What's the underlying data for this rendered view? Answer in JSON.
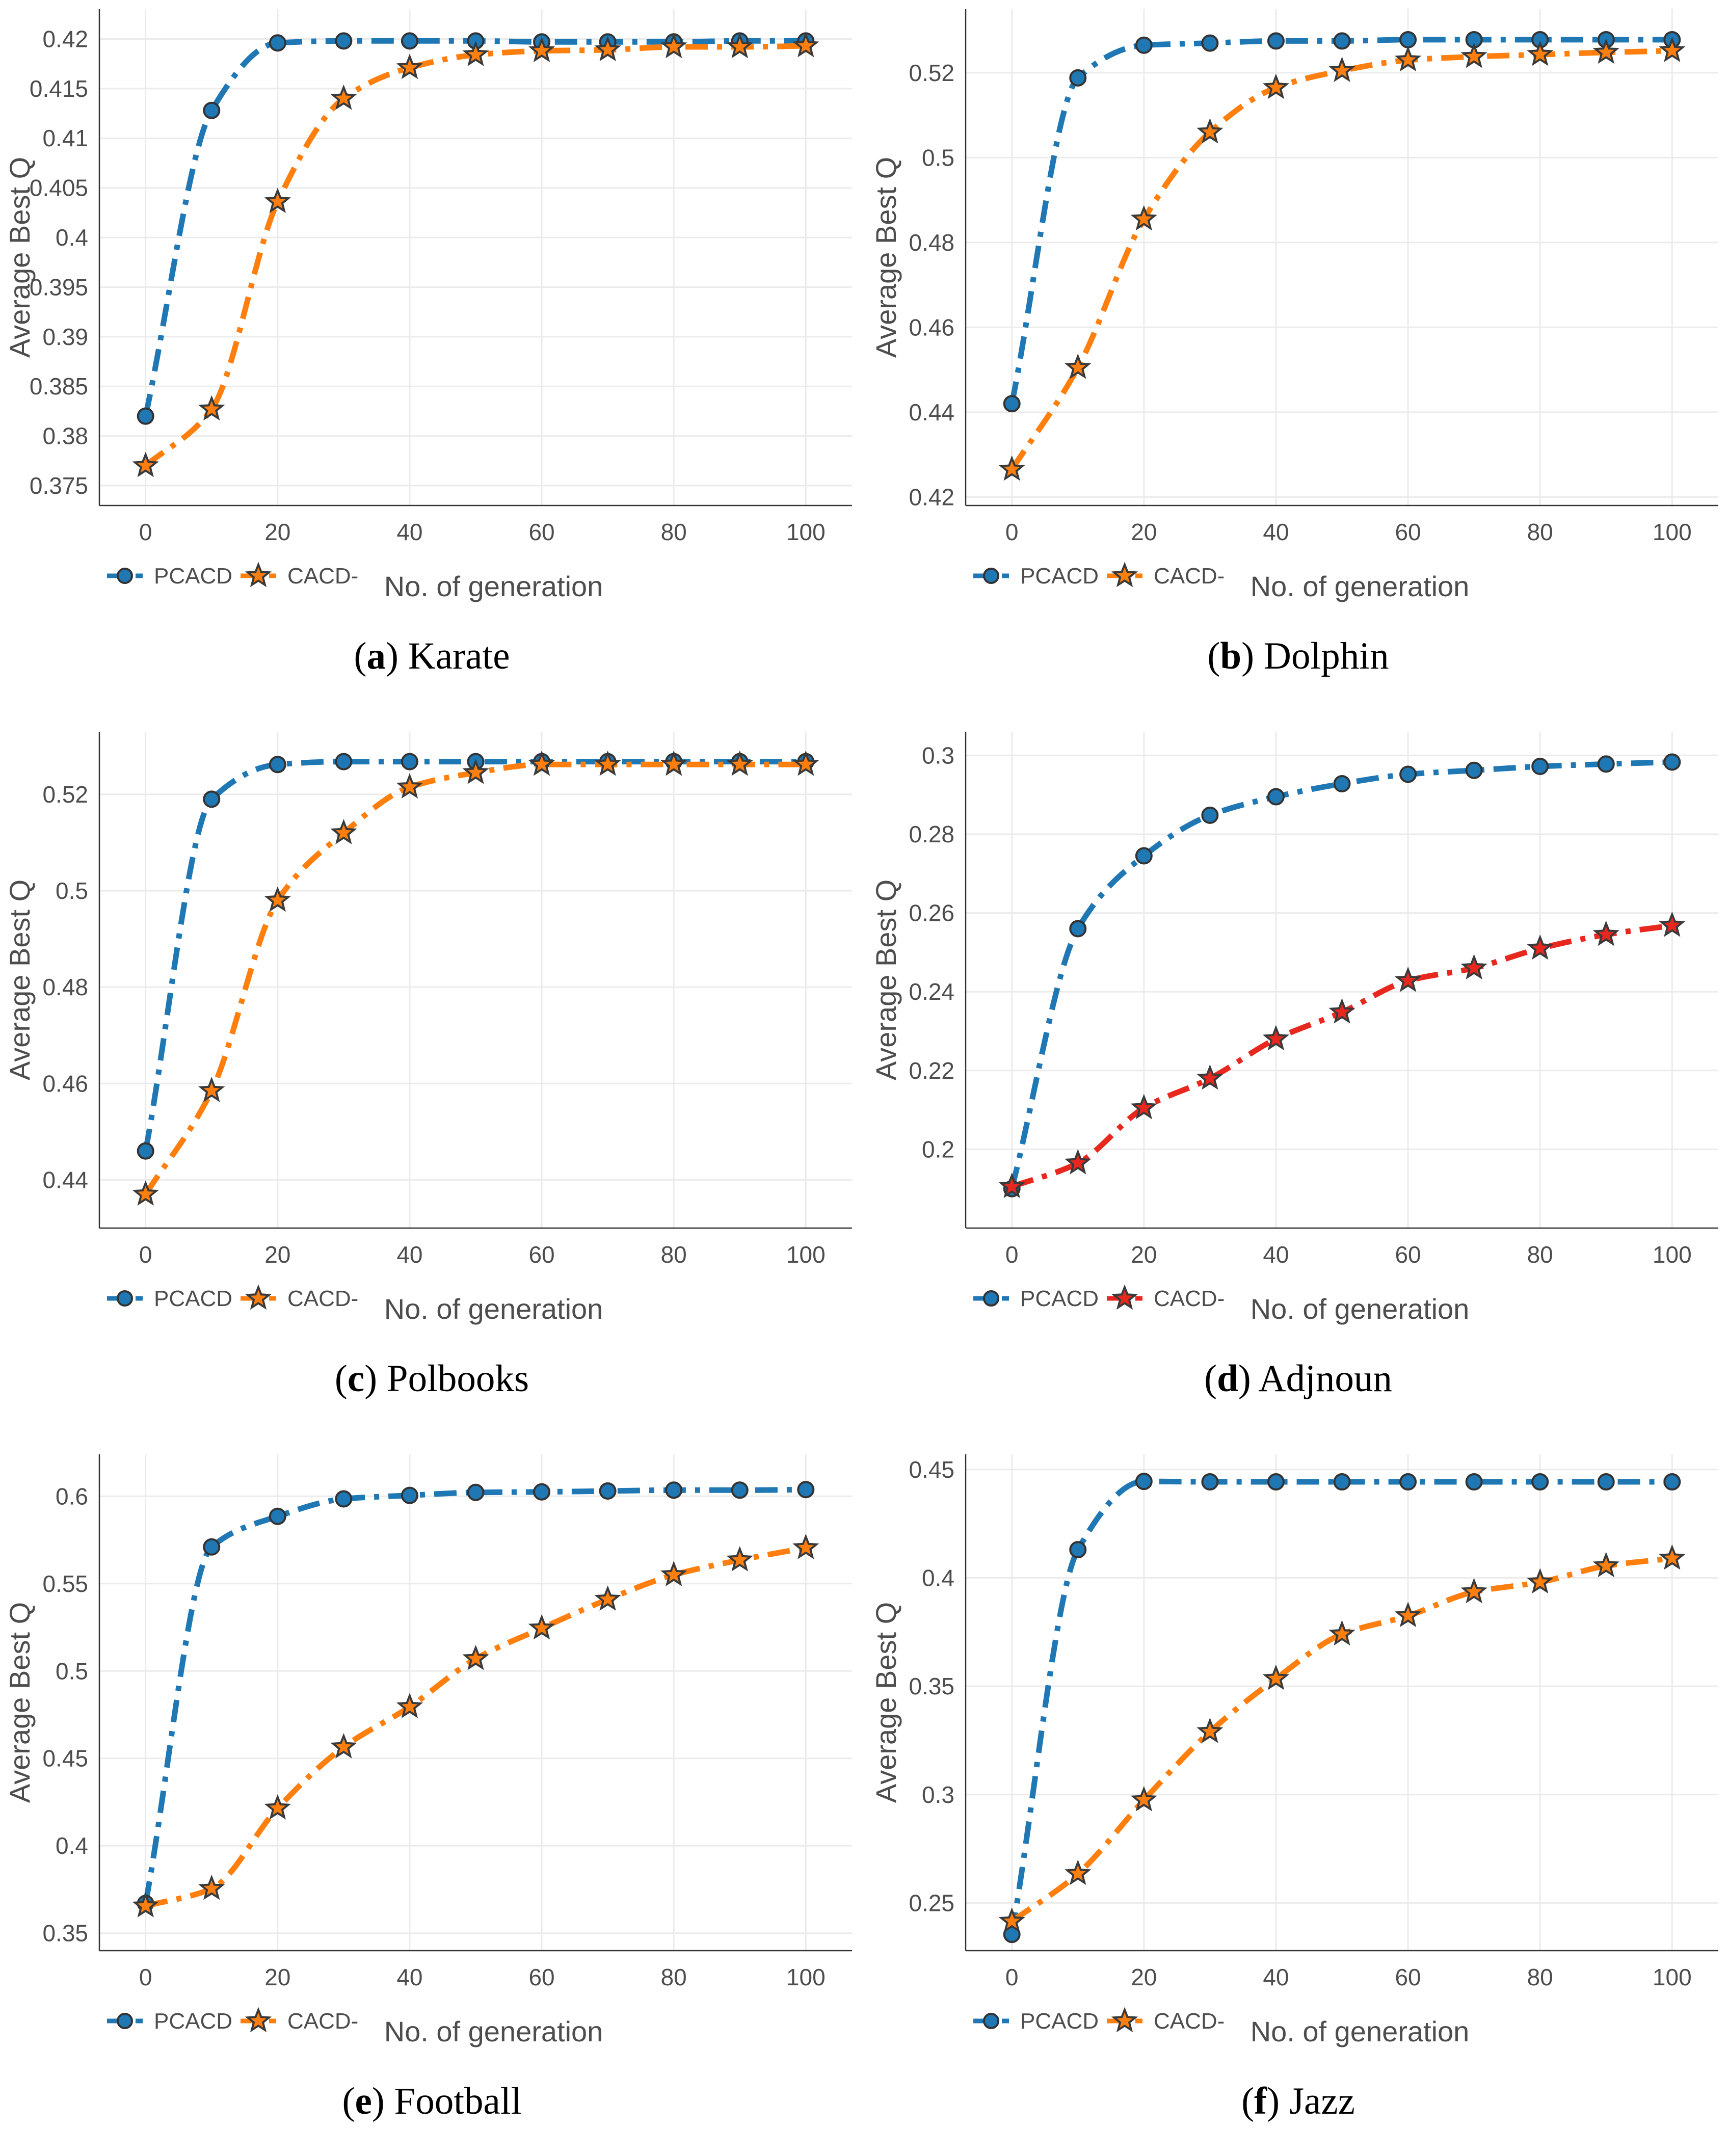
{
  "figure": {
    "legend_labels": [
      "PCACD",
      "CACD-"
    ],
    "x_axis_title_default": "No. of  generation",
    "y_axis_title": "Average Best Q"
  },
  "chart_data": [
    {
      "type": "line",
      "panel_letter": "a",
      "caption": "Karate",
      "xlabel": "No. of  generation",
      "ylabel": "Average Best Q",
      "xlim": [
        -7,
        107
      ],
      "ylim": [
        0.373,
        0.423
      ],
      "xticks": [
        0,
        20,
        40,
        60,
        80,
        100
      ],
      "yticks": [
        0.375,
        0.38,
        0.385,
        0.39,
        0.395,
        0.4,
        0.405,
        0.41,
        0.415,
        0.42
      ],
      "ytick_labels": [
        "0.375",
        "0.38",
        "0.385",
        "0.39",
        "0.395",
        "0.4",
        "0.405",
        "0.41",
        "0.415",
        "0.42"
      ],
      "x": [
        0,
        10,
        20,
        30,
        40,
        50,
        60,
        70,
        80,
        90,
        100
      ],
      "series": [
        {
          "name": "PCACD",
          "color": "#1f77b4",
          "marker": "circle",
          "values": [
            0.382,
            0.4128,
            0.4196,
            0.4198,
            0.4198,
            0.4198,
            0.4197,
            0.4197,
            0.4197,
            0.4198,
            0.4198
          ]
        },
        {
          "name": "CACD-",
          "color": "#ff7f0e",
          "marker": "star",
          "values": [
            0.377,
            0.3827,
            0.4036,
            0.414,
            0.4171,
            0.4184,
            0.4188,
            0.4189,
            0.4192,
            0.4192,
            0.4193
          ]
        }
      ]
    },
    {
      "type": "line",
      "panel_letter": "b",
      "caption": "Dolphin",
      "xlabel": "No. of generation",
      "ylabel": "Average Best Q",
      "xlim": [
        -7,
        107
      ],
      "ylim": [
        0.418,
        0.535
      ],
      "xticks": [
        0,
        20,
        40,
        60,
        80,
        100
      ],
      "yticks": [
        0.42,
        0.44,
        0.46,
        0.48,
        0.5,
        0.52
      ],
      "ytick_labels": [
        "0.42",
        "0.44",
        "0.46",
        "0.48",
        "0.5",
        "0.52"
      ],
      "x": [
        0,
        10,
        20,
        30,
        40,
        50,
        60,
        70,
        80,
        90,
        100
      ],
      "series": [
        {
          "name": "PCACD",
          "color": "#1f77b4",
          "marker": "circle",
          "values": [
            0.442,
            0.5188,
            0.5265,
            0.527,
            0.5275,
            0.5275,
            0.5278,
            0.5278,
            0.5278,
            0.5278,
            0.5278
          ]
        },
        {
          "name": "CACD-",
          "color": "#ff7f0e",
          "marker": "star",
          "values": [
            0.4265,
            0.4505,
            0.4855,
            0.506,
            0.5165,
            0.5205,
            0.523,
            0.5238,
            0.5243,
            0.5248,
            0.5252
          ]
        }
      ]
    },
    {
      "type": "line",
      "panel_letter": "c",
      "caption": "Polbooks",
      "xlabel": "No. of generation",
      "ylabel": "Average Best Q",
      "xlim": [
        -7,
        107
      ],
      "ylim": [
        0.43,
        0.533
      ],
      "xticks": [
        0,
        20,
        40,
        60,
        80,
        100
      ],
      "yticks": [
        0.44,
        0.46,
        0.48,
        0.5,
        0.52
      ],
      "ytick_labels": [
        "0.44",
        "0.46",
        "0.48",
        "0.5",
        "0.52"
      ],
      "x": [
        0,
        10,
        20,
        30,
        40,
        50,
        60,
        70,
        80,
        90,
        100
      ],
      "series": [
        {
          "name": "PCACD",
          "color": "#1f77b4",
          "marker": "circle",
          "values": [
            0.446,
            0.519,
            0.5262,
            0.5268,
            0.5268,
            0.5268,
            0.5268,
            0.5268,
            0.5268,
            0.5268,
            0.5268
          ]
        },
        {
          "name": "CACD-",
          "color": "#ff7f0e",
          "marker": "star",
          "values": [
            0.437,
            0.4585,
            0.498,
            0.512,
            0.5215,
            0.5245,
            0.5262,
            0.5262,
            0.5262,
            0.5262,
            0.5262
          ]
        }
      ]
    },
    {
      "type": "line",
      "panel_letter": "d",
      "caption": "Adjnoun",
      "xlabel": "No. of  generation",
      "ylabel": "Average Best Q",
      "xlim": [
        -7,
        107
      ],
      "ylim": [
        0.18,
        0.306
      ],
      "xticks": [
        0,
        20,
        40,
        60,
        80,
        100
      ],
      "yticks": [
        0.2,
        0.22,
        0.24,
        0.26,
        0.28,
        0.3
      ],
      "ytick_labels": [
        "0.2",
        "0.22",
        "0.24",
        "0.26",
        "0.28",
        "0.3"
      ],
      "x": [
        0,
        10,
        20,
        30,
        40,
        50,
        60,
        70,
        80,
        90,
        100
      ],
      "series": [
        {
          "name": "PCACD",
          "color": "#1f77b4",
          "marker": "circle",
          "values": [
            0.19,
            0.256,
            0.2745,
            0.2848,
            0.2895,
            0.2928,
            0.2952,
            0.2962,
            0.2972,
            0.2978,
            0.2983
          ]
        },
        {
          "name": "CACD-",
          "color": "#e8281f",
          "marker": "star",
          "values": [
            0.1905,
            0.1965,
            0.2105,
            0.218,
            0.228,
            0.2348,
            0.2428,
            0.246,
            0.251,
            0.2545,
            0.2568
          ]
        }
      ]
    },
    {
      "type": "line",
      "panel_letter": "e",
      "caption": "Football",
      "xlabel": "No. of  generation",
      "ylabel": "Average Best Q",
      "xlim": [
        -7,
        107
      ],
      "ylim": [
        0.34,
        0.624
      ],
      "xticks": [
        0,
        20,
        40,
        60,
        80,
        100
      ],
      "yticks": [
        0.35,
        0.4,
        0.45,
        0.5,
        0.55,
        0.6
      ],
      "ytick_labels": [
        "0.35",
        "0.4",
        "0.45",
        "0.5",
        "0.55",
        "0.6"
      ],
      "x": [
        0,
        10,
        20,
        30,
        40,
        50,
        60,
        70,
        80,
        90,
        100
      ],
      "series": [
        {
          "name": "PCACD",
          "color": "#1f77b4",
          "marker": "circle",
          "values": [
            0.367,
            0.571,
            0.5885,
            0.5985,
            0.6005,
            0.6022,
            0.6025,
            0.603,
            0.6035,
            0.6035,
            0.6038
          ]
        },
        {
          "name": "CACD-",
          "color": "#ff7f0e",
          "marker": "star",
          "values": [
            0.3655,
            0.3755,
            0.4215,
            0.4565,
            0.4795,
            0.507,
            0.5245,
            0.541,
            0.555,
            0.5635,
            0.5705
          ]
        }
      ]
    },
    {
      "type": "line",
      "panel_letter": "f",
      "caption": "Jazz",
      "xlabel": "No. of  generation",
      "ylabel": "Average Best Q",
      "xlim": [
        -7,
        107
      ],
      "ylim": [
        0.228,
        0.457
      ],
      "xticks": [
        0,
        20,
        40,
        60,
        80,
        100
      ],
      "yticks": [
        0.25,
        0.3,
        0.35,
        0.4,
        0.45
      ],
      "ytick_labels": [
        "0.25",
        "0.3",
        "0.35",
        "0.4",
        "0.45"
      ],
      "x": [
        0,
        10,
        20,
        30,
        40,
        50,
        60,
        70,
        80,
        90,
        100
      ],
      "series": [
        {
          "name": "PCACD",
          "color": "#1f77b4",
          "marker": "circle",
          "values": [
            0.2355,
            0.413,
            0.4445,
            0.4443,
            0.4443,
            0.4443,
            0.4443,
            0.4443,
            0.4443,
            0.4443,
            0.4443
          ]
        },
        {
          "name": "CACD-",
          "color": "#ff7f0e",
          "marker": "star",
          "values": [
            0.2415,
            0.2635,
            0.2975,
            0.329,
            0.3535,
            0.374,
            0.3825,
            0.3935,
            0.398,
            0.4055,
            0.409
          ]
        }
      ]
    }
  ]
}
